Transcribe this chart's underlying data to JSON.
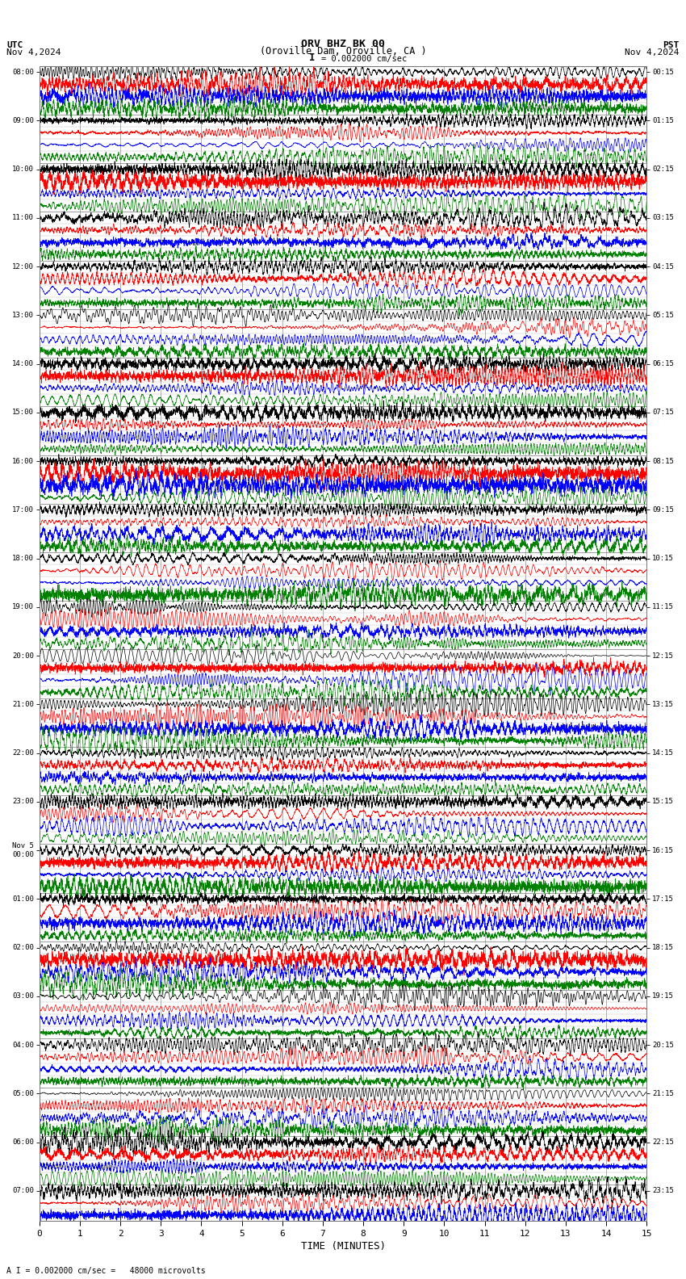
{
  "title_line1": "ORV BHZ BK 00",
  "title_line2": "(Oroville Dam, Oroville, CA )",
  "scale_text": "= 0.002000 cm/sec",
  "footer_text": "A I = 0.002000 cm/sec =   48000 microvolts",
  "left_header": "UTC",
  "left_date": "Nov 4,2024",
  "right_header": "PST",
  "right_date": "Nov 4,2024",
  "xlabel": "TIME (MINUTES)",
  "xmin": 0,
  "xmax": 15,
  "xticks": [
    0,
    1,
    2,
    3,
    4,
    5,
    6,
    7,
    8,
    9,
    10,
    11,
    12,
    13,
    14,
    15
  ],
  "bg_color": "#ffffff",
  "grid_color": "#777777",
  "trace_colors": [
    "black",
    "red",
    "blue",
    "green"
  ],
  "fig_width": 8.5,
  "fig_height": 15.84,
  "utc_labels": [
    "08:00",
    "",
    "",
    "",
    "09:00",
    "",
    "",
    "",
    "10:00",
    "",
    "",
    "",
    "11:00",
    "",
    "",
    "",
    "12:00",
    "",
    "",
    "",
    "13:00",
    "",
    "",
    "",
    "14:00",
    "",
    "",
    "",
    "15:00",
    "",
    "",
    "",
    "16:00",
    "",
    "",
    "",
    "17:00",
    "",
    "",
    "",
    "18:00",
    "",
    "",
    "",
    "19:00",
    "",
    "",
    "",
    "20:00",
    "",
    "",
    "",
    "21:00",
    "",
    "",
    "",
    "22:00",
    "",
    "",
    "",
    "23:00",
    "",
    "",
    "",
    "Nov 5\n00:00",
    "",
    "",
    "",
    "01:00",
    "",
    "",
    "",
    "02:00",
    "",
    "",
    "",
    "03:00",
    "",
    "",
    "",
    "04:00",
    "",
    "",
    "",
    "05:00",
    "",
    "",
    "",
    "06:00",
    "",
    "",
    "",
    "07:00",
    "",
    ""
  ],
  "pst_labels": [
    "00:15",
    "",
    "",
    "",
    "01:15",
    "",
    "",
    "",
    "02:15",
    "",
    "",
    "",
    "03:15",
    "",
    "",
    "",
    "04:15",
    "",
    "",
    "",
    "05:15",
    "",
    "",
    "",
    "06:15",
    "",
    "",
    "",
    "07:15",
    "",
    "",
    "",
    "08:15",
    "",
    "",
    "",
    "09:15",
    "",
    "",
    "",
    "10:15",
    "",
    "",
    "",
    "11:15",
    "",
    "",
    "",
    "12:15",
    "",
    "",
    "",
    "13:15",
    "",
    "",
    "",
    "14:15",
    "",
    "",
    "",
    "15:15",
    "",
    "",
    "",
    "16:15",
    "",
    "",
    "",
    "17:15",
    "",
    "",
    "",
    "18:15",
    "",
    "",
    "",
    "19:15",
    "",
    "",
    "",
    "20:15",
    "",
    "",
    "",
    "21:15",
    "",
    "",
    "",
    "22:15",
    "",
    "",
    "",
    "23:15",
    "",
    ""
  ],
  "num_rows": 95,
  "seed": 42
}
